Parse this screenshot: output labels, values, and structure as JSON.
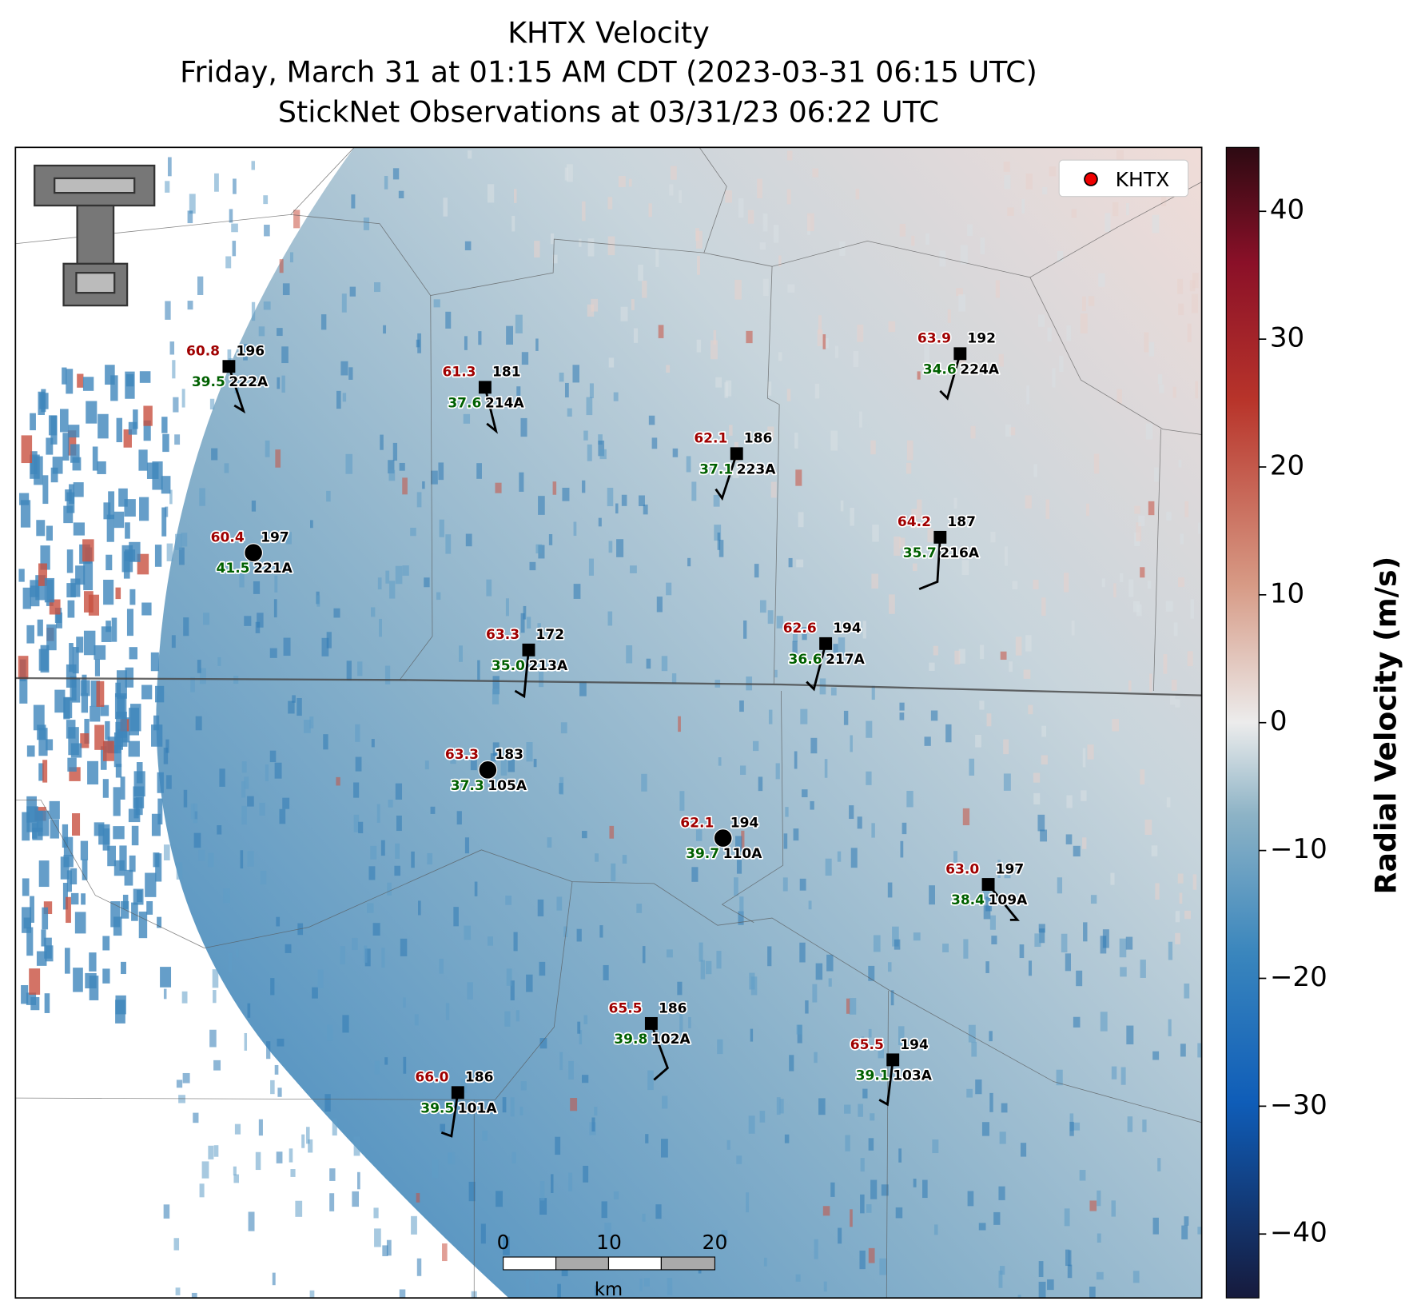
{
  "title": [
    "KHTX Velocity",
    "Friday, March 31 at 01:15 AM CDT (2023-03-31 06:15 UTC)",
    "StickNet Observations at 03/31/23 06:22 UTC"
  ],
  "legend": {
    "label": "KHTX"
  },
  "colorbar": {
    "label": "Radial Velocity (m/s)",
    "lim": [
      -45,
      45
    ],
    "ticks": [
      {
        "value": -40,
        "label": "−40"
      },
      {
        "value": -30,
        "label": "−30"
      },
      {
        "value": -20,
        "label": "−20"
      },
      {
        "value": -10,
        "label": "−10"
      },
      0,
      10,
      20,
      30,
      40
    ]
  },
  "scale_bar": {
    "ticks": [
      0,
      10,
      20
    ],
    "unit": "km"
  },
  "stations": [
    {
      "id": "222A",
      "red": "60.8",
      "dir": 196,
      "green": "39.5"
    },
    {
      "id": "214A",
      "red": "61.3",
      "dir": 181,
      "green": "37.6"
    },
    {
      "id": "223A",
      "red": "62.1",
      "dir": 186,
      "green": "37.1"
    },
    {
      "id": "224A",
      "red": "63.9",
      "dir": 192,
      "green": "34.6"
    },
    {
      "id": "221A",
      "red": "60.4",
      "dir": 197,
      "green": "41.5"
    },
    {
      "id": "216A",
      "red": "64.2",
      "dir": 187,
      "green": "35.7"
    },
    {
      "id": "213A",
      "red": "63.3",
      "dir": 172,
      "green": "35.0"
    },
    {
      "id": "217A",
      "red": "62.6",
      "dir": 194,
      "green": "36.6"
    },
    {
      "id": "105A",
      "red": "63.3",
      "dir": 183,
      "green": "37.3"
    },
    {
      "id": "110A",
      "red": "62.1",
      "dir": 194,
      "green": "39.7"
    },
    {
      "id": "109A",
      "red": "63.0",
      "dir": 197,
      "green": "38.4"
    },
    {
      "id": "102A",
      "red": "65.5",
      "dir": 186,
      "green": "39.8"
    },
    {
      "id": "103A",
      "red": "65.5",
      "dir": 194,
      "green": "39.1"
    },
    {
      "id": "101A",
      "red": "66.0",
      "dir": 186,
      "green": "39.5"
    }
  ]
}
